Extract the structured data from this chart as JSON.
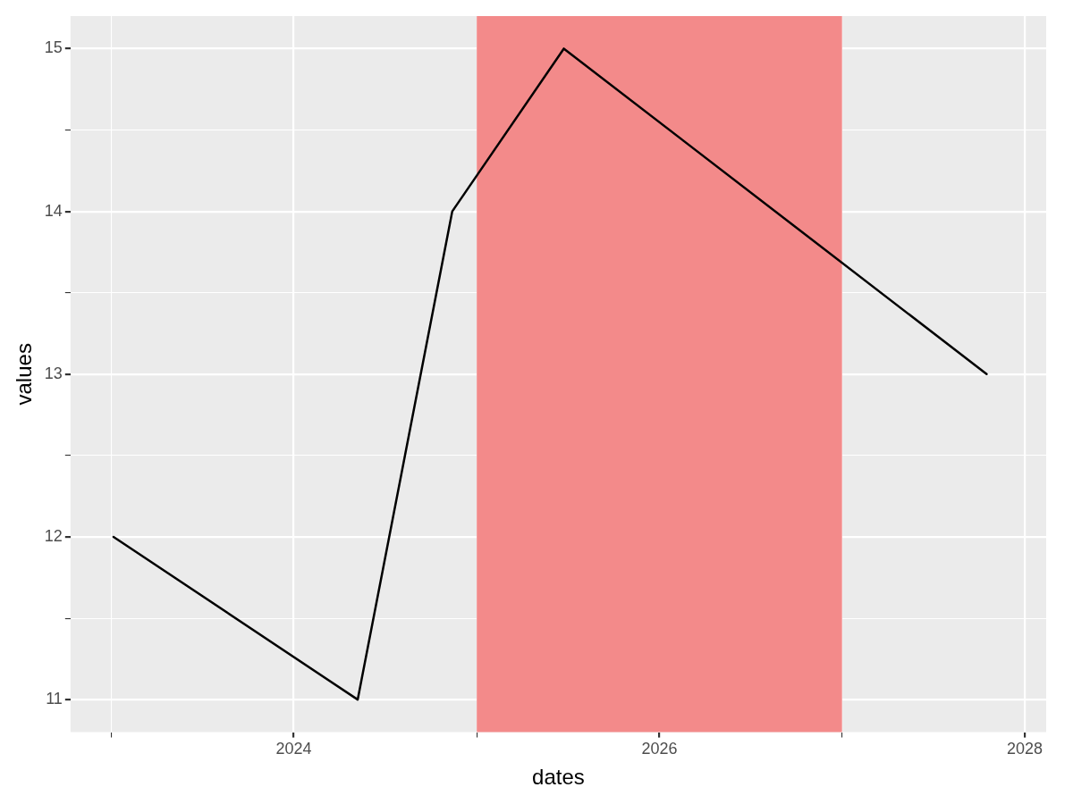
{
  "chart_data": {
    "type": "line",
    "xlabel": "dates",
    "ylabel": "values",
    "x": [
      "2023-01-06",
      "2024-05-08",
      "2024-11-13",
      "2025-06-24",
      "2027-10-17"
    ],
    "series": [
      {
        "color": "#000000",
        "values": [
          12,
          11,
          14,
          15,
          13
        ]
      }
    ],
    "xlim": [
      "2022-10-12",
      "2028-02-13"
    ],
    "xticks": [
      {
        "value": "2023",
        "label": null
      },
      "2024",
      {
        "value": "2025",
        "label": null
      },
      "2026",
      {
        "value": "2027",
        "label": null
      },
      "2028"
    ],
    "ylim": [
      10.8,
      15.2
    ],
    "yticks": [
      11,
      {
        "value": 11.5,
        "label": null
      },
      12,
      {
        "value": 12.5,
        "label": null
      },
      13,
      {
        "value": 13.5,
        "label": null
      },
      14,
      {
        "value": 14.5,
        "label": null
      },
      15
    ],
    "bands": [
      {
        "axis": "x",
        "from": "2025-01-01",
        "to": "2027-01-01",
        "color": "#f38a8a"
      }
    ],
    "grid": true,
    "legend": false,
    "marker": "none",
    "line_style": "solid"
  }
}
